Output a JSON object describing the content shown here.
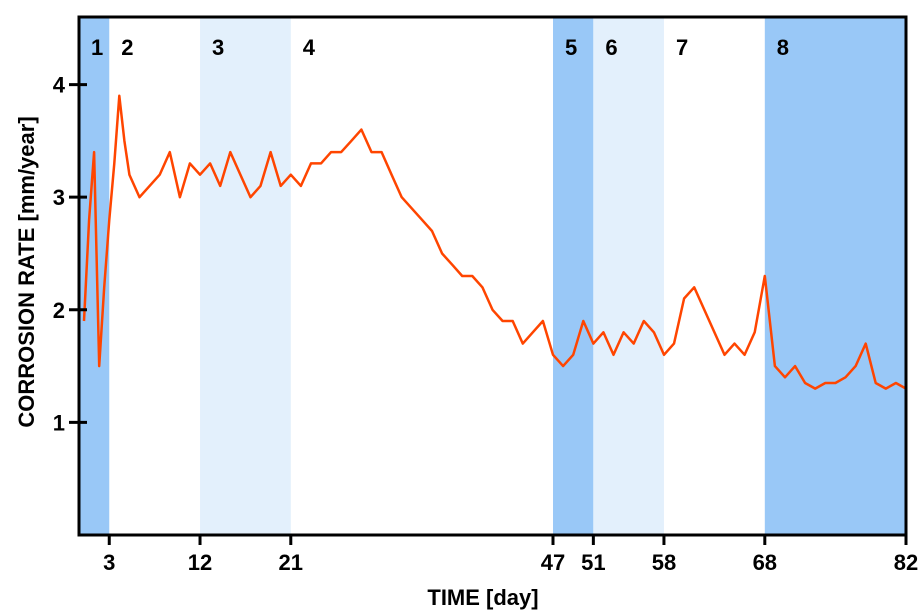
{
  "chart_data": {
    "type": "line",
    "title": "",
    "xlabel": "TIME [day]",
    "ylabel": "CORROSION RATE [mm/year]",
    "xlim": [
      0,
      82
    ],
    "ylim": [
      0,
      4.6
    ],
    "x_ticks": [
      3,
      12,
      21,
      47,
      51,
      58,
      68,
      82
    ],
    "y_ticks": [
      1,
      2,
      3,
      4
    ],
    "grid": false,
    "line_color": "#ff4500",
    "bands": [
      {
        "label": "1",
        "start": 0,
        "end": 3,
        "shade": "dark",
        "color": "#99c8f7"
      },
      {
        "label": "2",
        "start": 3,
        "end": 12,
        "shade": "none",
        "color": "#ffffff"
      },
      {
        "label": "3",
        "start": 12,
        "end": 21,
        "shade": "light",
        "color": "#e3f0fc"
      },
      {
        "label": "4",
        "start": 21,
        "end": 47,
        "shade": "none",
        "color": "#ffffff"
      },
      {
        "label": "5",
        "start": 47,
        "end": 51,
        "shade": "dark",
        "color": "#99c8f7"
      },
      {
        "label": "6",
        "start": 51,
        "end": 58,
        "shade": "light",
        "color": "#e3f0fc"
      },
      {
        "label": "7",
        "start": 58,
        "end": 68,
        "shade": "none",
        "color": "#ffffff"
      },
      {
        "label": "8",
        "start": 68,
        "end": 82,
        "shade": "dark",
        "color": "#99c8f7"
      }
    ],
    "series": [
      {
        "x": [
          0.5,
          1.0,
          1.5,
          2.0,
          2.5,
          3.0,
          3.5,
          4.0,
          4.5,
          5.0,
          6.0,
          7.0,
          8.0,
          9.0,
          10.0,
          11.0,
          12.0,
          13.0,
          14.0,
          15.0,
          16.0,
          17.0,
          18.0,
          19.0,
          20.0,
          21.0,
          22.0,
          23.0,
          24.0,
          25.0,
          26.0,
          27.0,
          28.0,
          29.0,
          30.0,
          31.0,
          32.0,
          33.0,
          34.0,
          35.0,
          36.0,
          37.0,
          38.0,
          39.0,
          40.0,
          41.0,
          42.0,
          43.0,
          44.0,
          45.0,
          46.0,
          47.0,
          48.0,
          49.0,
          50.0,
          51.0,
          52.0,
          53.0,
          54.0,
          55.0,
          56.0,
          57.0,
          58.0,
          59.0,
          60.0,
          61.0,
          62.0,
          63.0,
          64.0,
          65.0,
          66.0,
          67.0,
          68.0,
          69.0,
          70.0,
          71.0,
          72.0,
          73.0,
          74.0,
          75.0,
          76.0,
          77.0,
          78.0,
          79.0,
          80.0,
          81.0,
          82.0
        ],
        "values": [
          1.9,
          2.8,
          3.4,
          1.5,
          2.2,
          2.8,
          3.3,
          3.9,
          3.5,
          3.2,
          3.0,
          3.1,
          3.2,
          3.4,
          3.0,
          3.3,
          3.2,
          3.3,
          3.1,
          3.4,
          3.2,
          3.0,
          3.1,
          3.4,
          3.1,
          3.2,
          3.1,
          3.3,
          3.3,
          3.4,
          3.4,
          3.5,
          3.6,
          3.4,
          3.4,
          3.2,
          3.0,
          2.9,
          2.8,
          2.7,
          2.5,
          2.4,
          2.3,
          2.3,
          2.2,
          2.0,
          1.9,
          1.9,
          1.7,
          1.8,
          1.9,
          1.6,
          1.5,
          1.6,
          1.9,
          1.7,
          1.8,
          1.6,
          1.8,
          1.7,
          1.9,
          1.8,
          1.6,
          1.7,
          2.1,
          2.2,
          2.0,
          1.8,
          1.6,
          1.7,
          1.6,
          1.8,
          2.3,
          1.5,
          1.4,
          1.5,
          1.35,
          1.3,
          1.35,
          1.35,
          1.4,
          1.5,
          1.7,
          1.35,
          1.3,
          1.35,
          1.3
        ]
      }
    ]
  }
}
